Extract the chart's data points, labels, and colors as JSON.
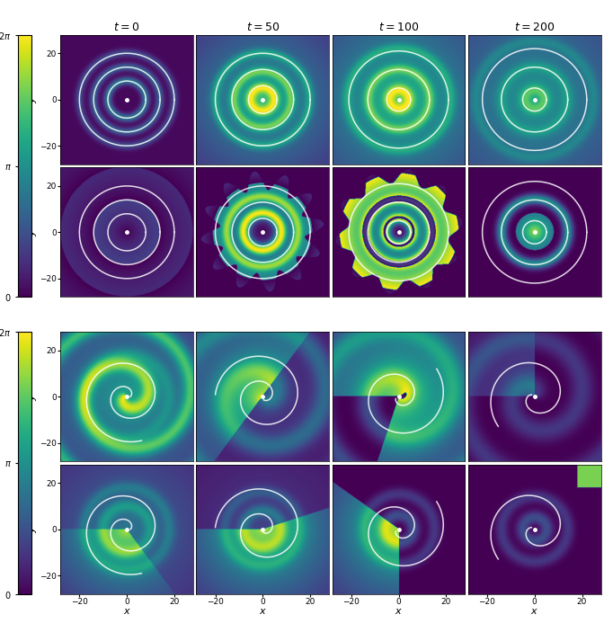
{
  "title_cols": [
    "t = 0",
    "t = 50",
    "t = 100",
    "t = 200"
  ],
  "t_vals": [
    0,
    50,
    100,
    200
  ],
  "cmap": "viridis",
  "figsize": [
    6.72,
    7.03
  ],
  "dpi": 100,
  "background": "#ffffff",
  "xlim": [
    -28,
    28
  ],
  "ylim": [
    -28,
    28
  ],
  "xticks": [
    -20,
    0,
    20
  ],
  "yticks": [
    -20,
    0,
    20
  ],
  "n_pts": 300
}
